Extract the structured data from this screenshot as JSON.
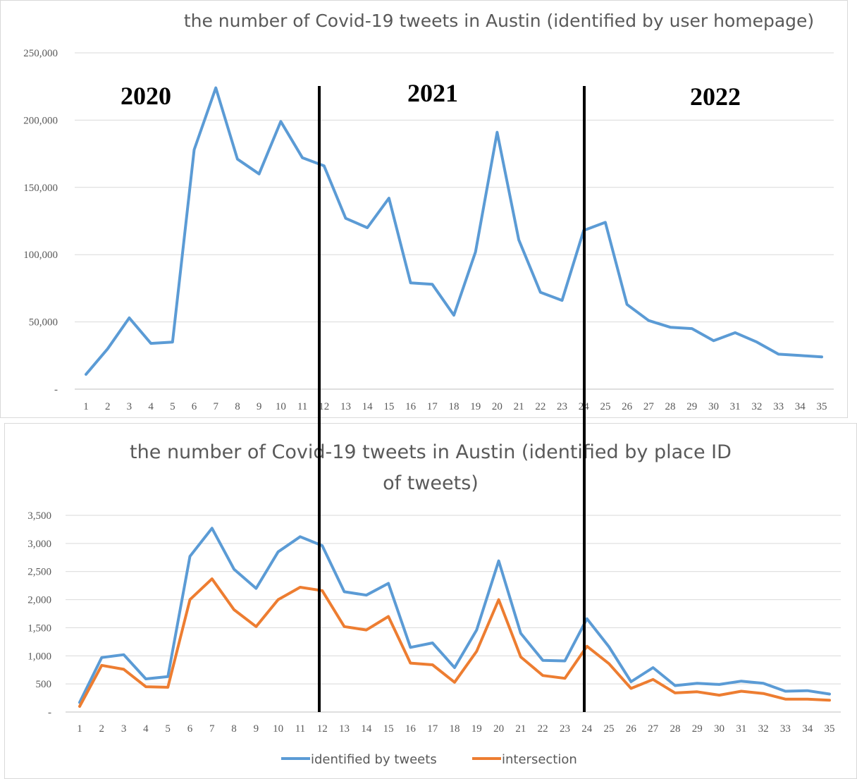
{
  "chart_data": [
    {
      "type": "line",
      "title": "the number of Covid-19 tweets in Austin (identified by user homepage)",
      "xlabel": "",
      "ylabel": "",
      "categories": [
        "1",
        "2",
        "3",
        "4",
        "5",
        "6",
        "7",
        "8",
        "9",
        "10",
        "11",
        "12",
        "13",
        "14",
        "15",
        "16",
        "17",
        "18",
        "19",
        "20",
        "21",
        "22",
        "23",
        "24",
        "25",
        "26",
        "27",
        "28",
        "29",
        "30",
        "31",
        "32",
        "33",
        "34",
        "35"
      ],
      "series": [
        {
          "color": "#5B9BD5",
          "values": [
            11000,
            30000,
            53000,
            34000,
            35000,
            178000,
            224000,
            171000,
            160000,
            199000,
            172000,
            166000,
            127000,
            120000,
            142000,
            79000,
            78000,
            55000,
            102000,
            191000,
            111000,
            72000,
            66000,
            118000,
            124000,
            63000,
            51000,
            46000,
            45000,
            36000,
            42000,
            35000,
            26000,
            25000,
            24000
          ]
        }
      ],
      "ylim": [
        0,
        250000
      ],
      "yticks": [
        "-",
        "50,000",
        "100,000",
        "150,000",
        "200,000",
        "250,000"
      ],
      "grid": true,
      "annotations": [
        "2020",
        "2021",
        "2022"
      ]
    },
    {
      "type": "line",
      "title": "the number of Covid-19 tweets in Austin (identified by place ID of tweets)",
      "title_lines": [
        "the number of Covid-19 tweets in Austin (identified by place ID",
        "of tweets)"
      ],
      "xlabel": "",
      "ylabel": "",
      "categories": [
        "1",
        "2",
        "3",
        "4",
        "5",
        "6",
        "7",
        "8",
        "9",
        "10",
        "11",
        "12",
        "13",
        "14",
        "15",
        "16",
        "17",
        "18",
        "19",
        "20",
        "21",
        "22",
        "23",
        "24",
        "25",
        "26",
        "27",
        "28",
        "29",
        "30",
        "31",
        "32",
        "33",
        "34",
        "35"
      ],
      "series": [
        {
          "name": "identified by tweets",
          "color": "#5B9BD5",
          "values": [
            170,
            970,
            1020,
            590,
            630,
            2770,
            3270,
            2540,
            2200,
            2850,
            3120,
            2960,
            2140,
            2080,
            2290,
            1150,
            1230,
            790,
            1460,
            2690,
            1400,
            920,
            910,
            1660,
            1160,
            540,
            790,
            470,
            510,
            490,
            550,
            510,
            370,
            380,
            320
          ]
        },
        {
          "name": "intersection",
          "color": "#ED7D31",
          "values": [
            100,
            830,
            760,
            450,
            440,
            2000,
            2370,
            1820,
            1520,
            2000,
            2220,
            2160,
            1520,
            1460,
            1700,
            870,
            840,
            530,
            1080,
            2000,
            980,
            650,
            600,
            1170,
            860,
            420,
            580,
            340,
            360,
            300,
            370,
            330,
            230,
            230,
            210
          ]
        }
      ],
      "ylim": [
        0,
        3500
      ],
      "yticks": [
        "-",
        "500",
        "1,000",
        "1,500",
        "2,000",
        "2,500",
        "3,000",
        "3,500"
      ],
      "grid": true,
      "legend": "bottom"
    }
  ]
}
